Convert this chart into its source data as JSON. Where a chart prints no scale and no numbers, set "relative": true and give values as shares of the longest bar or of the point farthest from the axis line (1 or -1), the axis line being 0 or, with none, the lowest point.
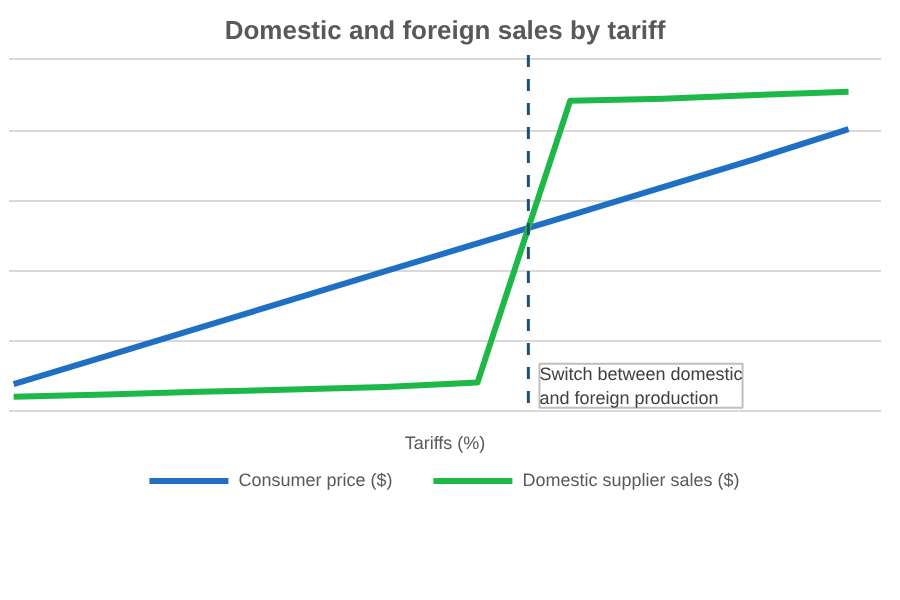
{
  "chart_data": {
    "type": "line",
    "title": "Domestic and foreign sales by tariff",
    "xlabel": "Tariffs (%)",
    "categories": [
      null,
      null,
      null,
      null,
      null,
      null,
      null,
      null,
      null,
      null
    ],
    "relative": true,
    "grid": "y",
    "legend": "bottom",
    "marker": "none",
    "line_style": "solid",
    "series": [
      {
        "name": "Consumer price ($)",
        "color": "#1f6fc5",
        "values": [
          0.084,
          0.172,
          0.26,
          0.349,
          0.437,
          0.525,
          0.613,
          0.701,
          0.79,
          0.883
        ]
      },
      {
        "name": "Domestic supplier sales ($)",
        "color": "#1db847",
        "values": [
          0.045,
          0.052,
          0.06,
          0.067,
          0.075,
          0.089,
          0.972,
          0.978,
          0.99,
          1.0
        ]
      }
    ],
    "annotations": [
      "Switch between domestic and foreign production"
    ]
  }
}
